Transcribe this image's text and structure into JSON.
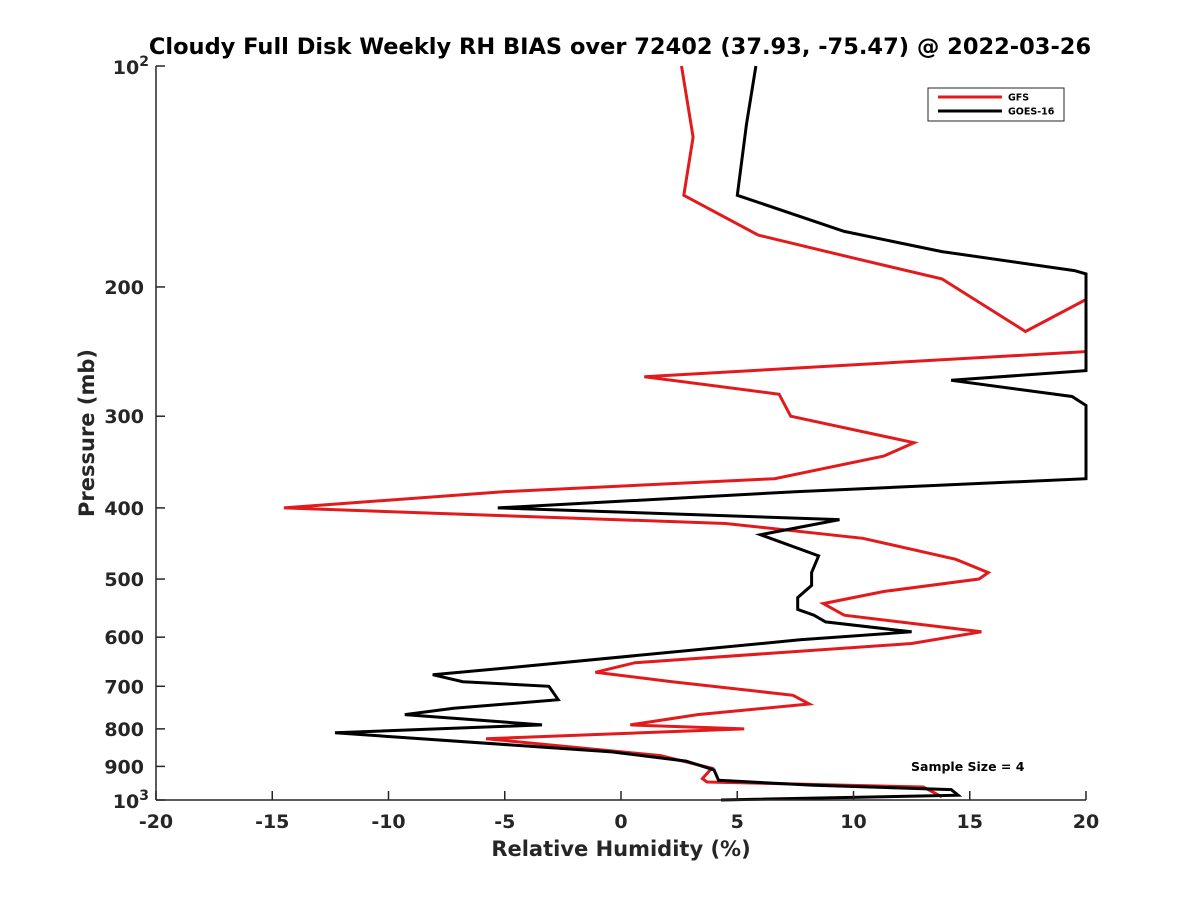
{
  "chart_data": {
    "type": "line",
    "title": "Cloudy Full Disk Weekly RH BIAS over 72402 (37.93, -75.47) @ 2022-03-26",
    "xlabel": "Relative Humidity (%)",
    "ylabel": "Pressure (mb)",
    "xlim": [
      -20,
      20
    ],
    "ylim": [
      100,
      1000
    ],
    "yscale": "log",
    "y_reversed": true,
    "grid": false,
    "legend_position": "top-right",
    "annotation": "Sample Size = 4",
    "xticks": [
      -20,
      -15,
      -10,
      -5,
      0,
      5,
      10,
      15,
      20
    ],
    "xtick_labels": [
      "-20",
      "-15",
      "-10",
      "-5",
      "0",
      "5",
      "10",
      "15",
      "20"
    ],
    "yticks": [
      {
        "value": 100,
        "base": "10",
        "exp": "2"
      },
      {
        "value": 200,
        "label": "200"
      },
      {
        "value": 300,
        "label": "300"
      },
      {
        "value": 400,
        "label": "400"
      },
      {
        "value": 500,
        "label": "500"
      },
      {
        "value": 600,
        "label": "600"
      },
      {
        "value": 700,
        "label": "700"
      },
      {
        "value": 800,
        "label": "800"
      },
      {
        "value": 900,
        "label": "900"
      },
      {
        "value": 1000,
        "base": "10",
        "exp": "3"
      }
    ],
    "series": [
      {
        "name": "GFS",
        "color": "#e31a1c",
        "points": [
          [
            2.6,
            100
          ],
          [
            3.1,
            125
          ],
          [
            2.7,
            150
          ],
          [
            5.9,
            170
          ],
          [
            10.1,
            183
          ],
          [
            13.8,
            195
          ],
          [
            17.4,
            230
          ],
          [
            20,
            208
          ],
          [
            20,
            245
          ],
          [
            1.0,
            265
          ],
          [
            6.8,
            280
          ],
          [
            7.3,
            300
          ],
          [
            12.6,
            326
          ],
          [
            11.3,
            340
          ],
          [
            6.6,
            365
          ],
          [
            -5.0,
            380
          ],
          [
            -14.5,
            400
          ],
          [
            4.5,
            420
          ],
          [
            10.4,
            440
          ],
          [
            14.4,
            470
          ],
          [
            15.8,
            490
          ],
          [
            15.4,
            500
          ],
          [
            11.3,
            520
          ],
          [
            8.7,
            540
          ],
          [
            9.6,
            560
          ],
          [
            15.5,
            590
          ],
          [
            12.5,
            612
          ],
          [
            0.6,
            650
          ],
          [
            -1.1,
            670
          ],
          [
            2.2,
            690
          ],
          [
            7.4,
            720
          ],
          [
            8.1,
            740
          ],
          [
            3.3,
            765
          ],
          [
            0.4,
            790
          ],
          [
            5.3,
            800
          ],
          [
            -5.8,
            825
          ],
          [
            1.7,
            870
          ],
          [
            3.9,
            905
          ],
          [
            3.5,
            935
          ],
          [
            3.7,
            945
          ],
          [
            13.0,
            960
          ],
          [
            13.8,
            990
          ]
        ]
      },
      {
        "name": "GOES-16",
        "color": "#000000",
        "points": [
          [
            5.8,
            100
          ],
          [
            5.4,
            120
          ],
          [
            5.0,
            150
          ],
          [
            9.6,
            168
          ],
          [
            13.8,
            179
          ],
          [
            19.5,
            190
          ],
          [
            20,
            192
          ],
          [
            20,
            260
          ],
          [
            14.2,
            268
          ],
          [
            19.4,
            282
          ],
          [
            20,
            290
          ],
          [
            20,
            365
          ],
          [
            7.6,
            380
          ],
          [
            -5.3,
            400
          ],
          [
            9.4,
            415
          ],
          [
            6.0,
            435
          ],
          [
            8.5,
            465
          ],
          [
            8.2,
            490
          ],
          [
            8.2,
            510
          ],
          [
            7.6,
            530
          ],
          [
            7.6,
            550
          ],
          [
            8.3,
            560
          ],
          [
            8.8,
            572
          ],
          [
            12.5,
            590
          ],
          [
            7.7,
            605
          ],
          [
            -4.7,
            660
          ],
          [
            -8.1,
            675
          ],
          [
            -6.8,
            690
          ],
          [
            -3.1,
            700
          ],
          [
            -2.7,
            730
          ],
          [
            -7.2,
            750
          ],
          [
            -9.3,
            765
          ],
          [
            -3.4,
            790
          ],
          [
            -12.3,
            810
          ],
          [
            -0.4,
            860
          ],
          [
            2.8,
            885
          ],
          [
            4.0,
            910
          ],
          [
            4.2,
            940
          ],
          [
            8.3,
            955
          ],
          [
            14.2,
            968
          ],
          [
            14.5,
            985
          ],
          [
            4.3,
            1000
          ]
        ]
      }
    ]
  }
}
